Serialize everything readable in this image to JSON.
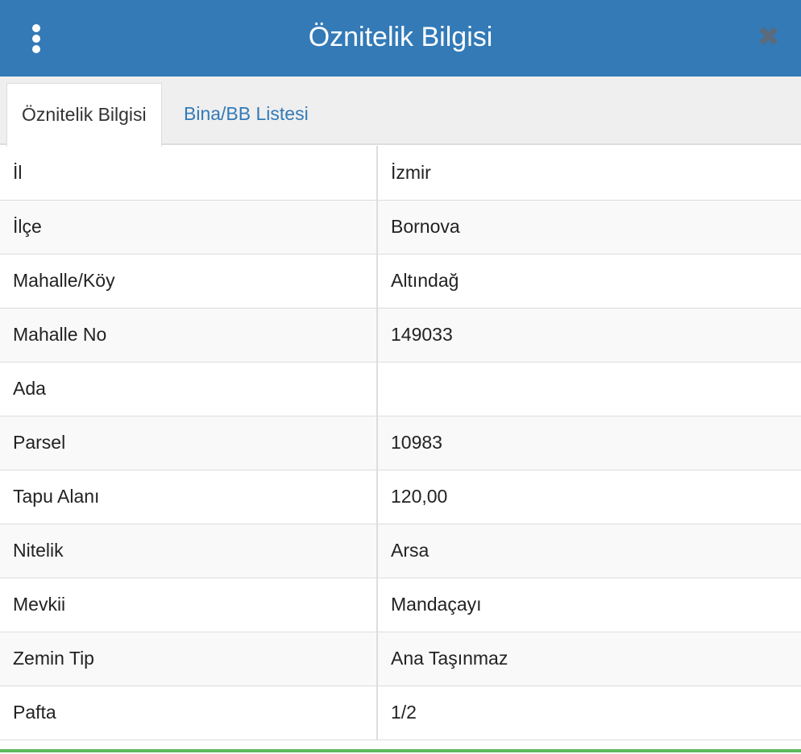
{
  "header": {
    "title": "Öznitelik Bilgisi"
  },
  "tabs": [
    "Öznitelik Bilgisi",
    "Bina/BB Listesi"
  ],
  "table": {
    "rows": [
      [
        "İl",
        "İzmir"
      ],
      [
        "İlçe",
        "Bornova"
      ],
      [
        "Mahalle/Köy",
        "Altındağ"
      ],
      [
        "Mahalle No",
        "149033"
      ],
      [
        "Ada",
        null
      ],
      [
        "Parsel",
        "10983"
      ],
      [
        "Tapu Alanı",
        "120,00"
      ],
      [
        "Nitelik",
        "Arsa"
      ],
      [
        "Mevkii",
        "Mandaçayı"
      ],
      [
        "Zemin Tip",
        "Ana Taşınmaz"
      ],
      [
        "Pafta",
        "1/2"
      ]
    ]
  }
}
